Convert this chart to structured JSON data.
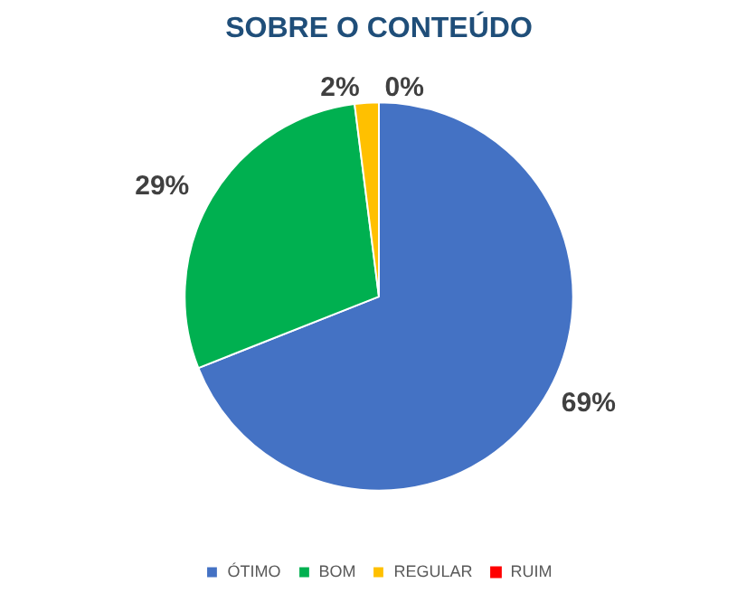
{
  "chart_data": {
    "type": "pie",
    "title": "SOBRE O CONTEÚDO",
    "categories": [
      "ÓTIMO",
      "BOM",
      "REGULAR",
      "RUIM"
    ],
    "values": [
      69,
      29,
      2,
      0
    ],
    "colors": [
      "#4472c4",
      "#00b050",
      "#ffc000",
      "#ff0000"
    ],
    "value_labels": [
      "69%",
      "29%",
      "2%",
      "0%"
    ],
    "legend": "bottom"
  }
}
